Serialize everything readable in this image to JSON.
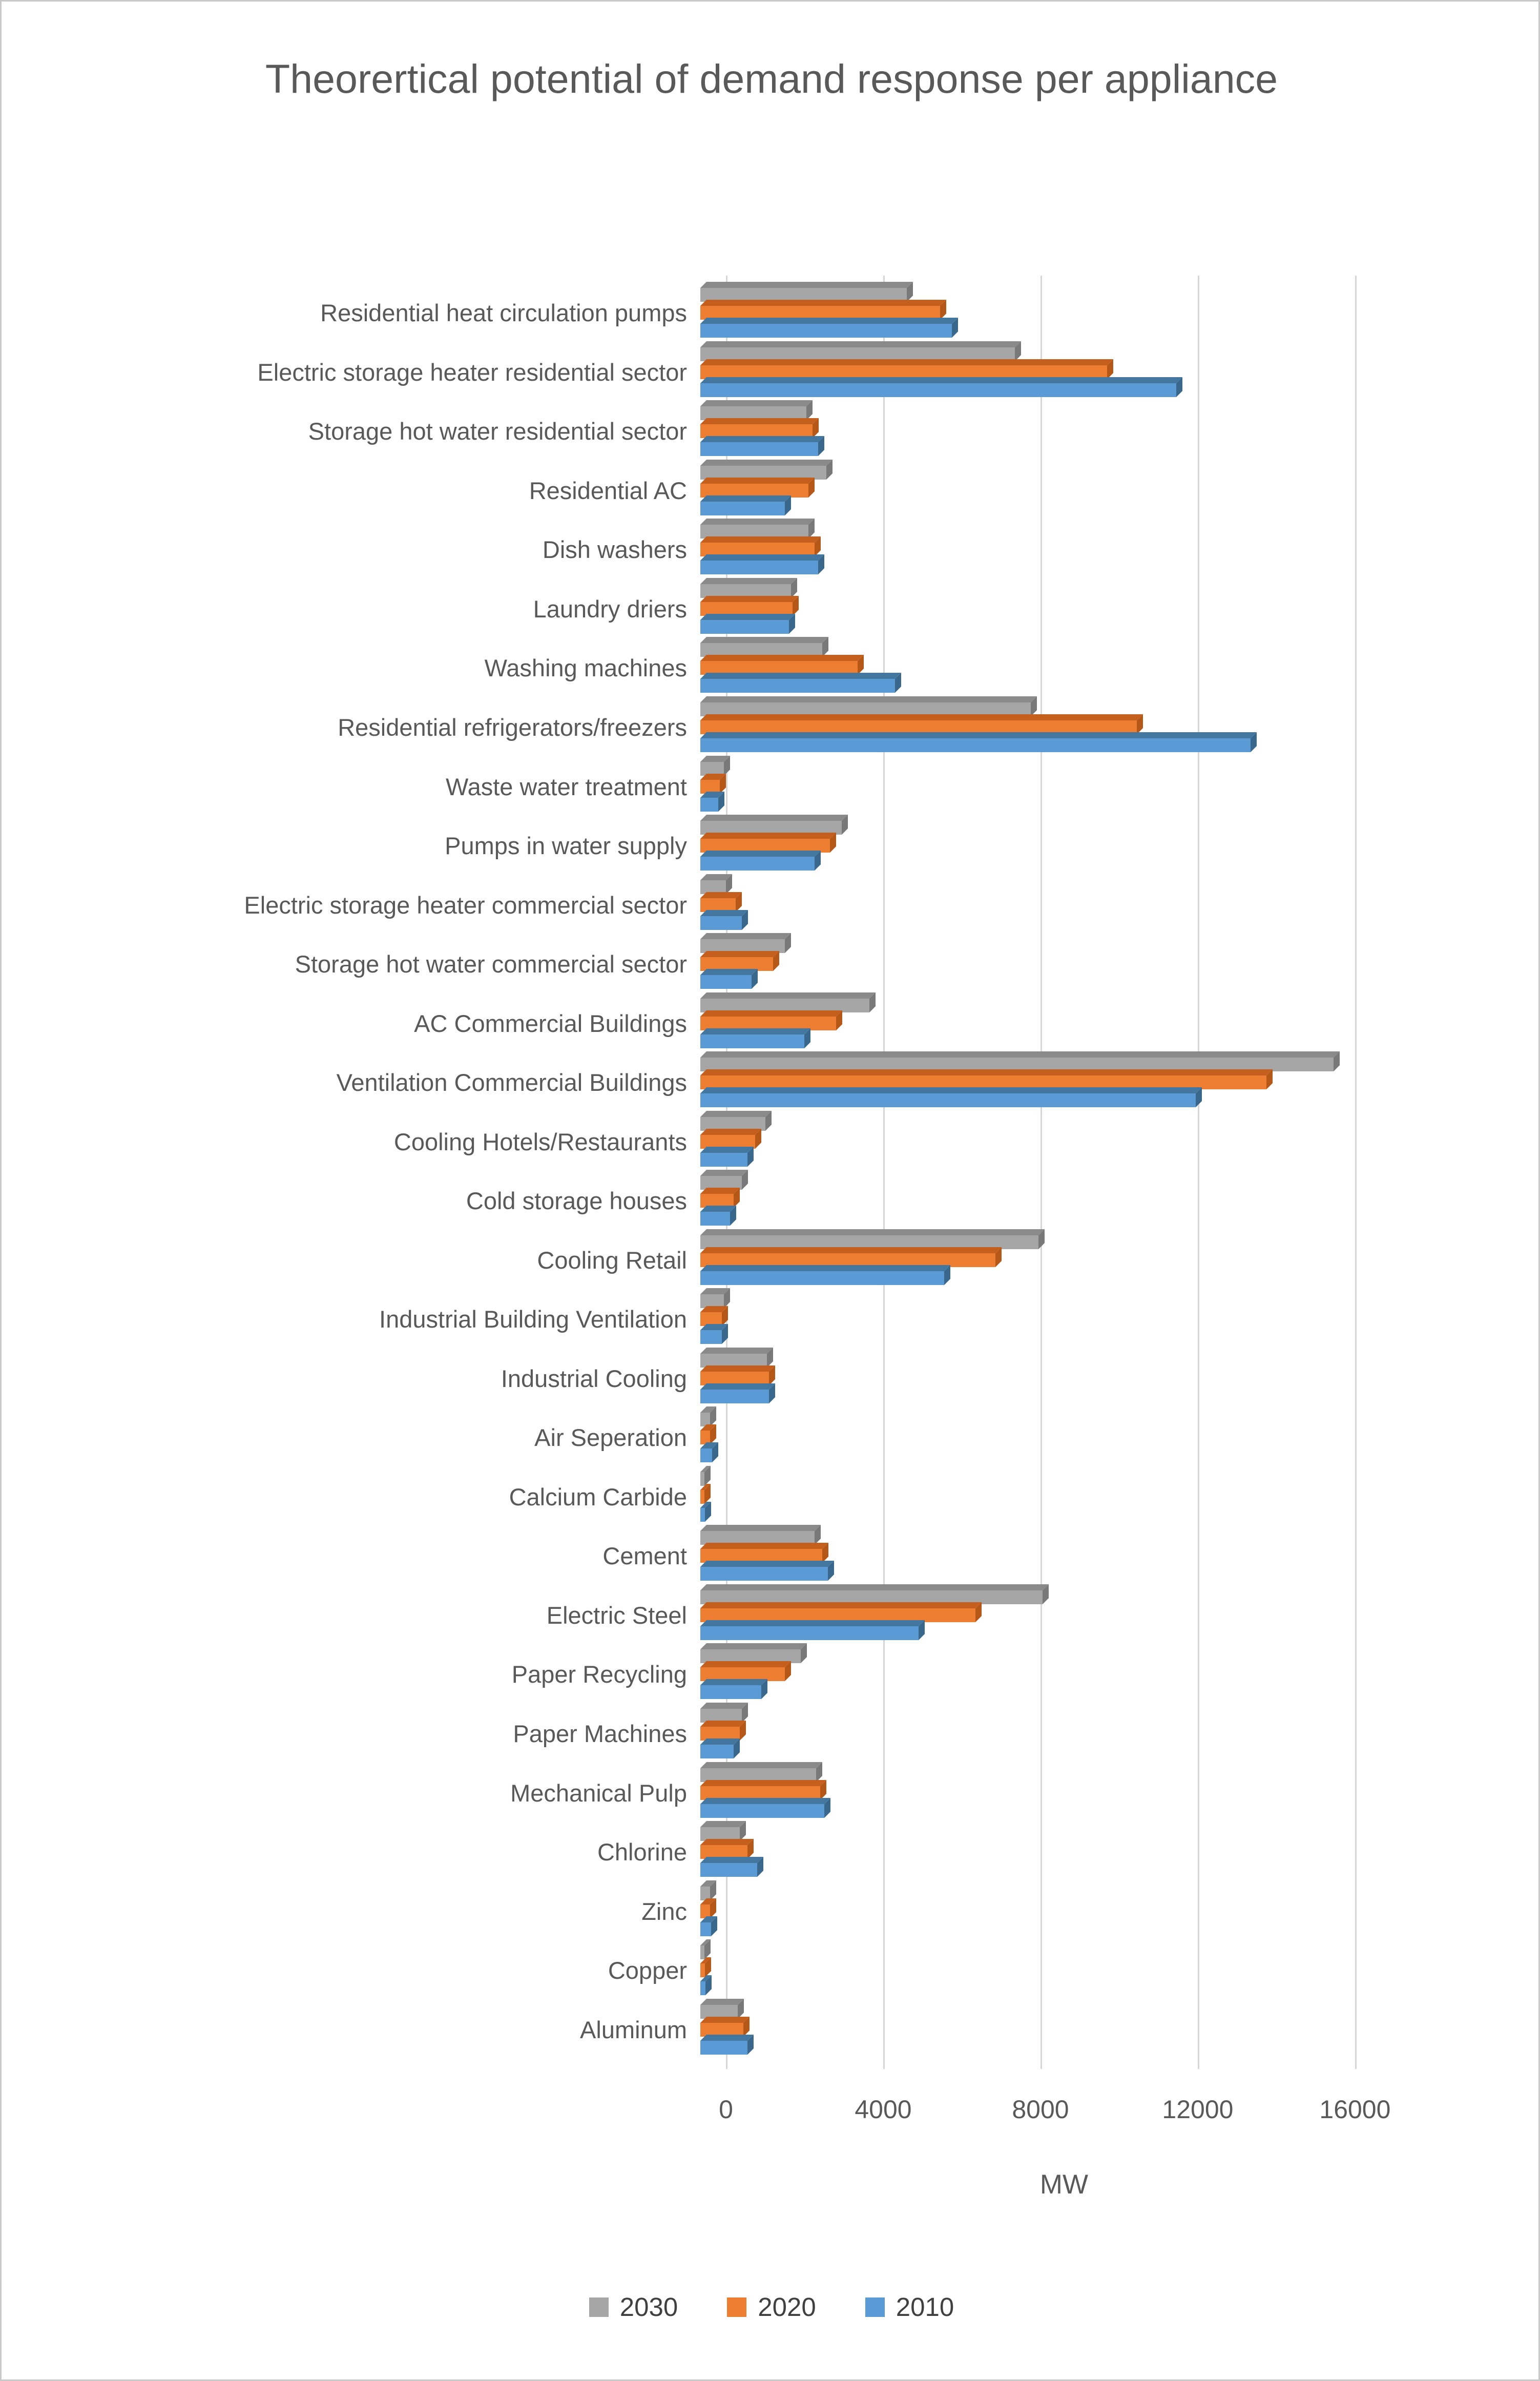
{
  "title": "Theorertical potential of demand response per appliance",
  "axis": {
    "xlabel": "MW"
  },
  "legend": [
    {
      "label": "2030",
      "color": "#a6a6a6"
    },
    {
      "label": "2020",
      "color": "#ed7d31"
    },
    {
      "label": "2010",
      "color": "#5b9bd5"
    }
  ],
  "chart_data": {
    "type": "bar",
    "orientation": "horizontal",
    "title": "Theorertical potential of demand response per appliance",
    "xlabel": "MW",
    "unit": "MW",
    "xlim": [
      0,
      17200
    ],
    "gridlines": [
      0,
      4000,
      8000,
      12000,
      16000
    ],
    "grid": true,
    "legend_position": "bottom",
    "bar_style": "3d",
    "categories": [
      "Residential heat circulation pumps",
      "Electric storage heater residential sector",
      "Storage hot water residential sector",
      "Residential AC",
      "Dish washers",
      "Laundry driers",
      "Washing machines",
      "Residential refrigerators/freezers",
      "Waste water treatment",
      "Pumps in water supply",
      "Electric storage heater commercial sector",
      "Storage hot water commercial sector",
      "AC Commercial Buildings",
      "Ventilation Commercial Buildings",
      "Cooling Hotels/Restaurants",
      "Cold storage houses",
      "Cooling Retail",
      "Industrial Building Ventilation",
      "Industrial Cooling",
      "Air Seperation",
      "Calcium Carbide",
      "Cement",
      "Electric Steel",
      "Paper Recycling",
      "Paper Machines",
      "Mechanical Pulp",
      "Chlorine",
      "Zinc",
      "Copper",
      "Aluminum"
    ],
    "series": [
      {
        "name": "2030",
        "color": "#a6a6a6",
        "values": [
          5250,
          8000,
          2700,
          3200,
          2750,
          2300,
          3100,
          8400,
          600,
          3600,
          650,
          2150,
          4300,
          16100,
          1650,
          1050,
          8600,
          600,
          1700,
          250,
          100,
          2900,
          8700,
          2550,
          1050,
          2950,
          1000,
          250,
          100,
          950
        ]
      },
      {
        "name": "2020",
        "color": "#ed7d31",
        "values": [
          6100,
          10350,
          2850,
          2750,
          2900,
          2350,
          4000,
          11100,
          500,
          3300,
          900,
          1850,
          3450,
          14400,
          1400,
          850,
          7500,
          550,
          1750,
          250,
          100,
          3100,
          7000,
          2150,
          1000,
          3050,
          1200,
          250,
          120,
          1100
        ]
      },
      {
        "name": "2010",
        "color": "#5b9bd5",
        "values": [
          6400,
          12100,
          3000,
          2150,
          3000,
          2250,
          4950,
          14000,
          450,
          2900,
          1050,
          1300,
          2650,
          12600,
          1200,
          750,
          6200,
          550,
          1750,
          300,
          120,
          3250,
          5550,
          1550,
          850,
          3150,
          1450,
          280,
          130,
          1200
        ]
      }
    ]
  }
}
